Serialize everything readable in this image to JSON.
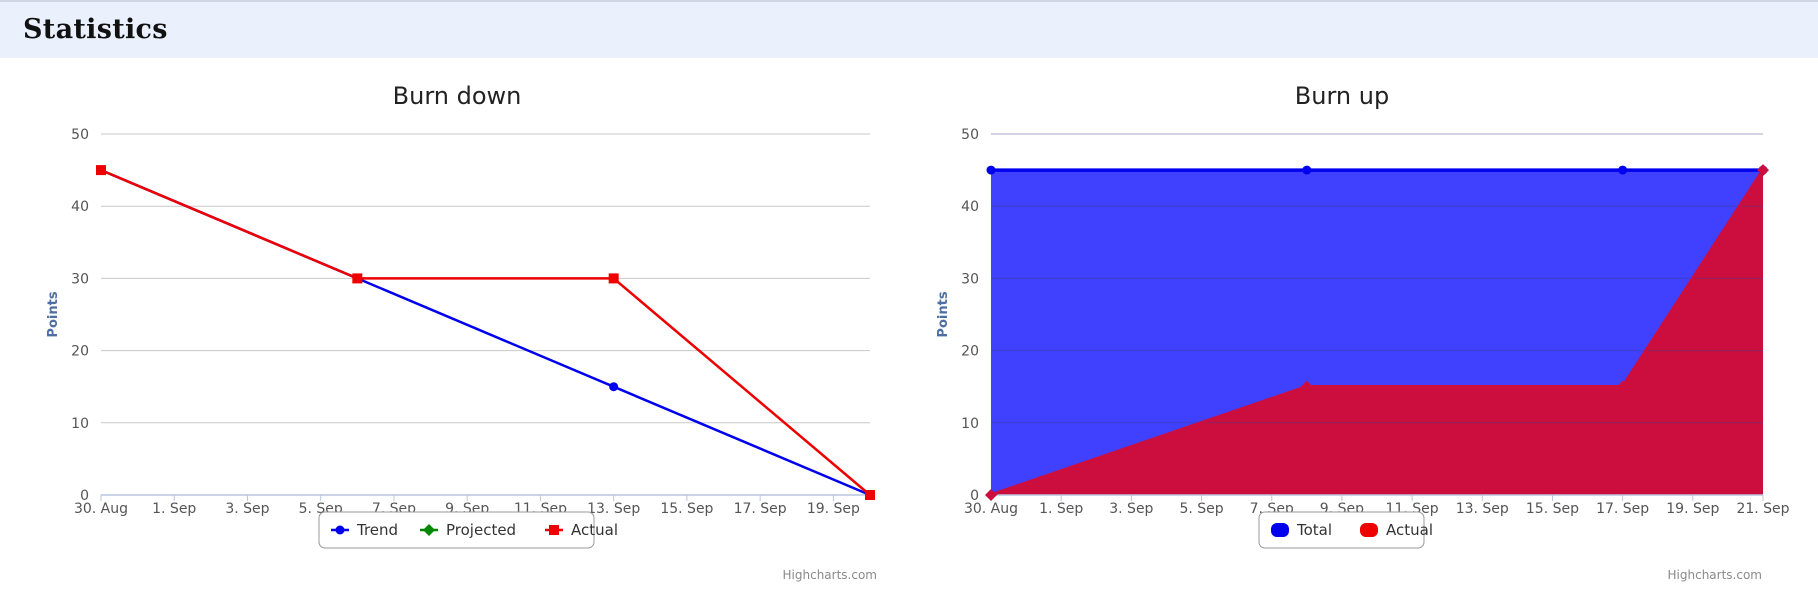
{
  "header": {
    "title": "Statistics"
  },
  "colors": {
    "header_bg": "#eaf1fd",
    "blue": "#0000ee",
    "green": "#008800",
    "red": "#ee0000",
    "crimson": "#cc0e3e",
    "area_blue": "#4040ff",
    "axis_title": "#4d6fa3"
  },
  "credits": "Highcharts.com",
  "chart_data": [
    {
      "id": "burndown",
      "type": "line",
      "title": "Burn down",
      "xlabel": "",
      "ylabel": "Points",
      "ylim": [
        0,
        50
      ],
      "yticks": [
        0,
        10,
        20,
        30,
        40,
        50
      ],
      "xrange": [
        "2020-08-30",
        "2020-09-20"
      ],
      "xtick_labels": [
        "30. Aug",
        "1. Sep",
        "3. Sep",
        "5. Sep",
        "7. Sep",
        "9. Sep",
        "11. Sep",
        "13. Sep",
        "15. Sep",
        "17. Sep",
        "19. Sep"
      ],
      "grid": true,
      "legend": "bottom-center",
      "series": [
        {
          "name": "Trend",
          "color": "#0000ee",
          "marker": "circle",
          "points": [
            [
              "2020-08-30",
              45
            ],
            [
              "2020-09-06",
              30
            ],
            [
              "2020-09-13",
              15
            ],
            [
              "2020-09-20",
              0
            ]
          ]
        },
        {
          "name": "Projected",
          "color": "#008800",
          "marker": "diamond",
          "points": []
        },
        {
          "name": "Actual",
          "color": "#ee0000",
          "marker": "square",
          "points": [
            [
              "2020-08-30",
              45
            ],
            [
              "2020-09-06",
              30
            ],
            [
              "2020-09-13",
              30
            ],
            [
              "2020-09-20",
              0
            ]
          ]
        }
      ]
    },
    {
      "id": "burnup",
      "type": "area",
      "title": "Burn up",
      "xlabel": "",
      "ylabel": "Points",
      "ylim": [
        0,
        50
      ],
      "yticks": [
        0,
        10,
        20,
        30,
        40,
        50
      ],
      "xrange": [
        "2020-08-30",
        "2020-09-21"
      ],
      "xtick_labels": [
        "30. Aug",
        "1. Sep",
        "3. Sep",
        "5. Sep",
        "7. Sep",
        "9. Sep",
        "11. Sep",
        "13. Sep",
        "15. Sep",
        "17. Sep",
        "19. Sep",
        "21. Sep"
      ],
      "grid": true,
      "legend": "bottom-center",
      "series": [
        {
          "name": "Total",
          "color": "#0000ee",
          "fill": "#4040ff",
          "marker": "circle",
          "points": [
            [
              "2020-08-30",
              45
            ],
            [
              "2020-09-08",
              45
            ],
            [
              "2020-09-17",
              45
            ],
            [
              "2020-09-21",
              45
            ]
          ]
        },
        {
          "name": "Actual",
          "color": "#cc0e3e",
          "fill": "#cc0e3e",
          "marker": "diamond",
          "points": [
            [
              "2020-08-30",
              0
            ],
            [
              "2020-09-08",
              15
            ],
            [
              "2020-09-17",
              15
            ],
            [
              "2020-09-21",
              45
            ]
          ]
        }
      ]
    }
  ]
}
